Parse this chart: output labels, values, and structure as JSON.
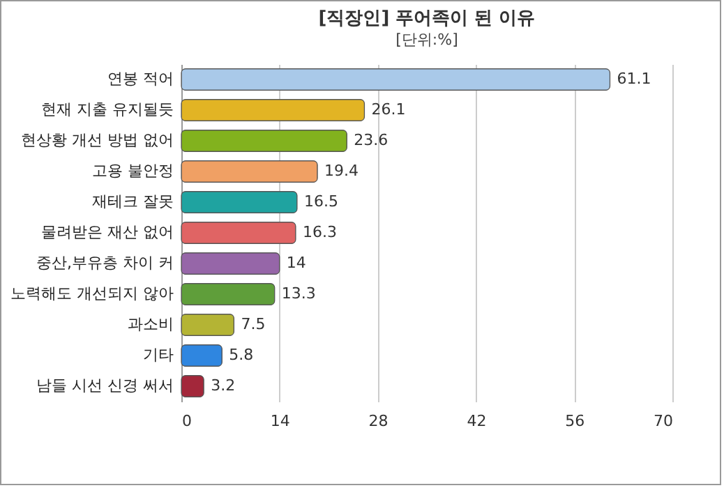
{
  "chart_data": {
    "type": "bar",
    "title": "[직장인] 푸어족이 된 이유",
    "subtitle": "[단위:%]",
    "orientation": "horizontal",
    "categories": [
      "연봉 적어",
      "현재 지출 유지될듯",
      "현상황 개선 방법 없어",
      "고용 불안정",
      "재테크 잘못",
      "물려받은 재산 없어",
      "중산,부유층 차이 커",
      "노력해도 개선되지 않아",
      "과소비",
      "기타",
      "남들 시선 신경 써서"
    ],
    "values": [
      61.1,
      26.1,
      23.6,
      19.4,
      16.5,
      16.3,
      14,
      13.3,
      7.5,
      5.8,
      3.2
    ],
    "colors": [
      "#a9c9e9",
      "#e2b424",
      "#82b21e",
      "#f0a064",
      "#1fa3a0",
      "#e06464",
      "#9666a8",
      "#5f9e3a",
      "#b4b434",
      "#2f86e0",
      "#a3273a"
    ],
    "xlim": [
      0,
      70
    ],
    "xticks": [
      0,
      14,
      28,
      42,
      56,
      70
    ],
    "grid": "x",
    "data_labels": true
  }
}
